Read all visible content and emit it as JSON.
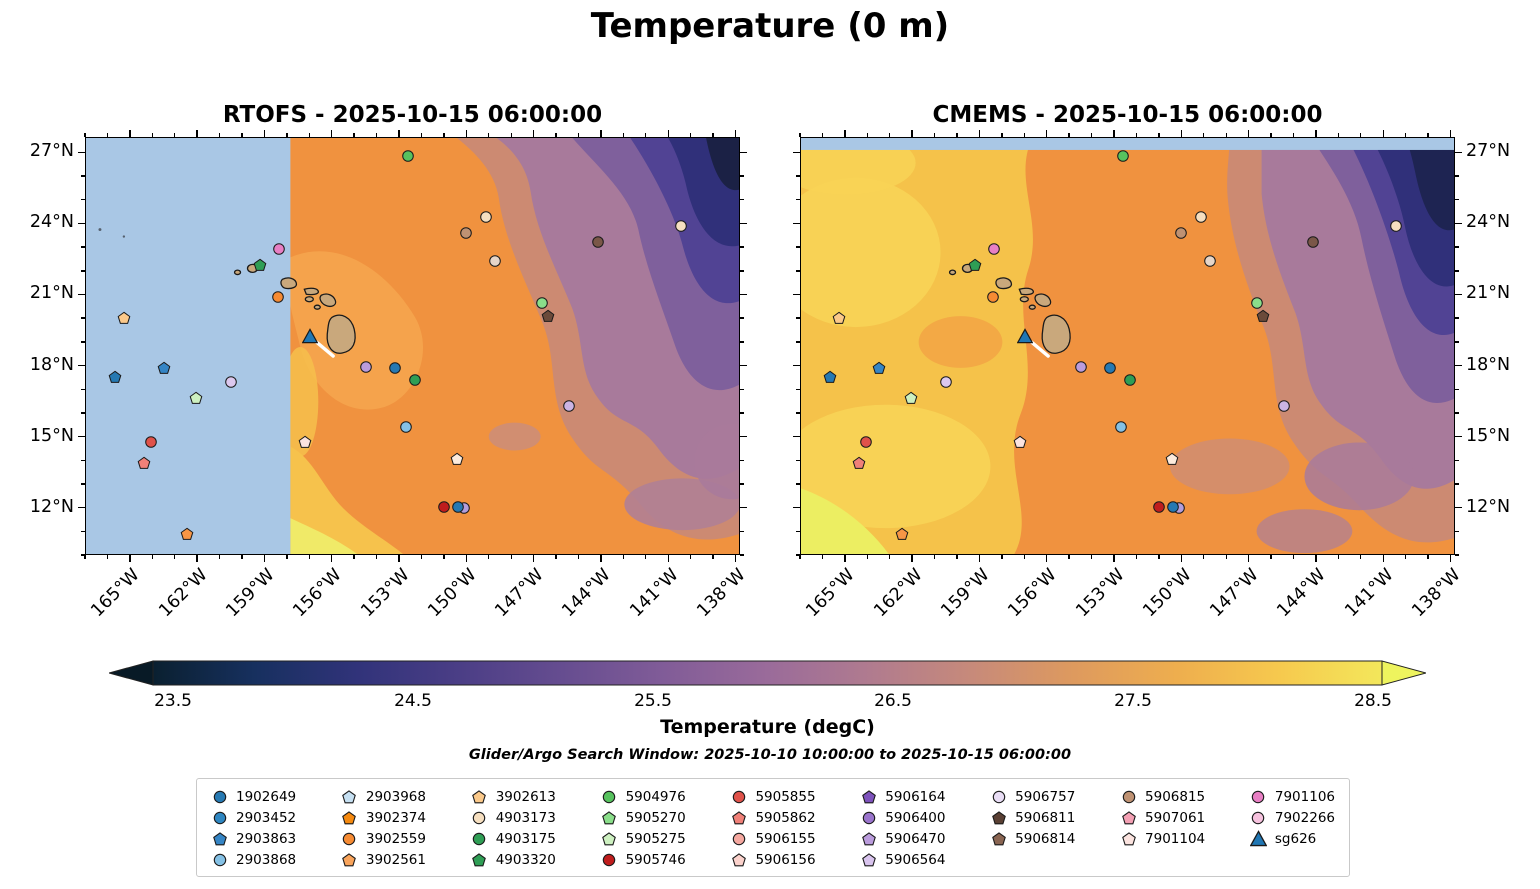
{
  "title": "Temperature (0 m)",
  "panels": [
    {
      "name": "RTOFS",
      "title": "RTOFS - 2025-10-15 06:00:00"
    },
    {
      "name": "CMEMS",
      "title": "CMEMS - 2025-10-15 06:00:00"
    }
  ],
  "axes": {
    "extent": {
      "lon_min": -167.0,
      "lon_max": -137.8,
      "lat_min": 10.0,
      "lat_max": 27.65
    },
    "lon_ticks": [
      {
        "label": "165°W",
        "lon": -165
      },
      {
        "label": "162°W",
        "lon": -162
      },
      {
        "label": "159°W",
        "lon": -159
      },
      {
        "label": "156°W",
        "lon": -156
      },
      {
        "label": "153°W",
        "lon": -153
      },
      {
        "label": "150°W",
        "lon": -150
      },
      {
        "label": "147°W",
        "lon": -147
      },
      {
        "label": "144°W",
        "lon": -144
      },
      {
        "label": "141°W",
        "lon": -141
      },
      {
        "label": "138°W",
        "lon": -138
      }
    ],
    "lat_ticks": [
      {
        "label": "27°N",
        "lat": 27
      },
      {
        "label": "24°N",
        "lat": 24
      },
      {
        "label": "21°N",
        "lat": 21
      },
      {
        "label": "18°N",
        "lat": 18
      },
      {
        "label": "15°N",
        "lat": 15
      },
      {
        "label": "12°N",
        "lat": 12
      }
    ]
  },
  "colorbar": {
    "label": "Temperature (degC)",
    "ticks": [
      "23.5",
      "24.5",
      "25.5",
      "26.5",
      "27.5",
      "28.5"
    ],
    "under_color": "#081a26",
    "over_color": "#eef45e",
    "gradient": [
      "#0a2030",
      "#17305f",
      "#31337a",
      "#4b3e86",
      "#664d90",
      "#815c98",
      "#9a6b9a",
      "#b07b8f",
      "#c78a7a",
      "#de9a5e",
      "#eeae4e",
      "#f6c94e",
      "#f3e75b"
    ]
  },
  "search_window": "Glider/Argo Search Window: 2025-10-10 10:00:00 to 2025-10-15 06:00:00",
  "colors": {
    "no_data": "#a9c7e5",
    "land": "#c9a87c",
    "warm_base": "#f0923f",
    "warm_yellow": "#f5c24a",
    "cool_mauve": "#a87a9b",
    "cool_purple": "#7f609c",
    "coldest_navy": "#1e2452",
    "glider_track": "#ffffff"
  },
  "legend": {
    "columns": [
      [
        {
          "id": "1902649",
          "shape": "circle",
          "color": "#2679b2"
        },
        {
          "id": "2903452",
          "shape": "circle",
          "color": "#2e86c1"
        },
        {
          "id": "2903863",
          "shape": "pentagon",
          "color": "#3585c5"
        },
        {
          "id": "2903868",
          "shape": "circle",
          "color": "#85c1e5"
        }
      ],
      [
        {
          "id": "2903968",
          "shape": "pentagon",
          "color": "#c6e0f2"
        },
        {
          "id": "3902374",
          "shape": "pentagon",
          "color": "#f5890f"
        },
        {
          "id": "3902559",
          "shape": "circle",
          "color": "#f68b33"
        },
        {
          "id": "3902561",
          "shape": "pentagon",
          "color": "#f9a45b"
        }
      ],
      [
        {
          "id": "3902613",
          "shape": "pentagon",
          "color": "#fbc98a"
        },
        {
          "id": "4903173",
          "shape": "circle",
          "color": "#f6dfc0"
        },
        {
          "id": "4903175",
          "shape": "circle",
          "color": "#2f9e55"
        },
        {
          "id": "4903320",
          "shape": "pentagon",
          "color": "#2f9e55"
        }
      ],
      [
        {
          "id": "5904976",
          "shape": "circle",
          "color": "#57c25e"
        },
        {
          "id": "5905270",
          "shape": "pentagon",
          "color": "#8ade8a"
        },
        {
          "id": "5905275",
          "shape": "pentagon",
          "color": "#cdf0c0"
        },
        {
          "id": "5905746",
          "shape": "circle",
          "color": "#c01d1d"
        }
      ],
      [
        {
          "id": "5905855",
          "shape": "circle",
          "color": "#e0524a"
        },
        {
          "id": "5905862",
          "shape": "pentagon",
          "color": "#f08078"
        },
        {
          "id": "5906155",
          "shape": "circle",
          "color": "#f5a8a0"
        },
        {
          "id": "5906156",
          "shape": "pentagon",
          "color": "#fbd2cc"
        }
      ],
      [
        {
          "id": "5906164",
          "shape": "pentagon",
          "color": "#7e52bc"
        },
        {
          "id": "5906400",
          "shape": "circle",
          "color": "#9a74cc"
        },
        {
          "id": "5906470",
          "shape": "pentagon",
          "color": "#bb9cdd"
        },
        {
          "id": "5906564",
          "shape": "pentagon",
          "color": "#d9c4ee"
        }
      ],
      [
        {
          "id": "5906757",
          "shape": "circle",
          "color": "#e9ddf5"
        },
        {
          "id": "5906811",
          "shape": "pentagon",
          "color": "#5a4034"
        },
        {
          "id": "5906814",
          "shape": "pentagon",
          "color": "#8a6552"
        }
      ],
      [
        {
          "id": "5906815",
          "shape": "circle",
          "color": "#bf9273"
        },
        {
          "id": "5907061",
          "shape": "pentagon",
          "color": "#f4a0b4"
        },
        {
          "id": "7901104",
          "shape": "pentagon",
          "color": "#fbe3df"
        }
      ],
      [
        {
          "id": "7901106",
          "shape": "circle",
          "color": "#e87fc4"
        },
        {
          "id": "7902266",
          "shape": "circle",
          "color": "#f6c2de"
        },
        {
          "id": "sg626",
          "shape": "triangle",
          "color": "#2077b4"
        }
      ]
    ]
  },
  "markers": [
    {
      "lon": -152.6,
      "lat": 26.9,
      "shape": "circle",
      "color": "#57c25e"
    },
    {
      "lon": -149.1,
      "lat": 24.3,
      "shape": "circle",
      "color": "#f6dfc0"
    },
    {
      "lon": -150.0,
      "lat": 23.6,
      "shape": "circle",
      "color": "#bf9273"
    },
    {
      "lon": -144.1,
      "lat": 23.25,
      "shape": "circle",
      "color": "#7a5748"
    },
    {
      "lon": -140.4,
      "lat": 23.9,
      "shape": "circle",
      "color": "#f6dfc0"
    },
    {
      "lon": -148.7,
      "lat": 22.45,
      "shape": "circle",
      "color": "#e6d5c8"
    },
    {
      "lon": -158.35,
      "lat": 22.95,
      "shape": "circle",
      "color": "#e87fc4"
    },
    {
      "lon": -159.2,
      "lat": 22.25,
      "shape": "pentagon",
      "color": "#2f9e55"
    },
    {
      "lon": -158.4,
      "lat": 20.9,
      "shape": "circle",
      "color": "#f68b33"
    },
    {
      "lon": -146.6,
      "lat": 20.65,
      "shape": "circle",
      "color": "#8ade8a"
    },
    {
      "lon": -146.35,
      "lat": 20.1,
      "shape": "pentagon",
      "color": "#6b4a3a"
    },
    {
      "lon": -165.3,
      "lat": 20.0,
      "shape": "pentagon",
      "color": "#fbc98a"
    },
    {
      "lon": -154.5,
      "lat": 17.95,
      "shape": "circle",
      "color": "#bb9cdd"
    },
    {
      "lon": -153.2,
      "lat": 17.9,
      "shape": "circle",
      "color": "#2679b2"
    },
    {
      "lon": -163.5,
      "lat": 17.9,
      "shape": "pentagon",
      "color": "#3585c5"
    },
    {
      "lon": -165.7,
      "lat": 17.5,
      "shape": "pentagon",
      "color": "#2679b2"
    },
    {
      "lon": -152.3,
      "lat": 17.4,
      "shape": "circle",
      "color": "#2f9e55"
    },
    {
      "lon": -160.5,
      "lat": 17.3,
      "shape": "circle",
      "color": "#dcc8ee"
    },
    {
      "lon": -162.1,
      "lat": 16.6,
      "shape": "pentagon",
      "color": "#cdf0c0"
    },
    {
      "lon": -145.4,
      "lat": 16.3,
      "shape": "circle",
      "color": "#cbb4e4"
    },
    {
      "lon": -152.7,
      "lat": 15.4,
      "shape": "circle",
      "color": "#85c1e5"
    },
    {
      "lon": -164.1,
      "lat": 14.75,
      "shape": "circle",
      "color": "#e0524a"
    },
    {
      "lon": -157.2,
      "lat": 14.75,
      "shape": "pentagon",
      "color": "#fbe3df"
    },
    {
      "lon": -164.4,
      "lat": 13.85,
      "shape": "pentagon",
      "color": "#f08078"
    },
    {
      "lon": -150.4,
      "lat": 14.05,
      "shape": "pentagon",
      "color": "#fcebdd"
    },
    {
      "lon": -151.0,
      "lat": 12.0,
      "shape": "circle",
      "color": "#c01d1d"
    },
    {
      "lon": -150.1,
      "lat": 11.95,
      "shape": "circle",
      "color": "#b39ddb"
    },
    {
      "lon": -150.35,
      "lat": 12.0,
      "shape": "circle",
      "color": "#2679b2"
    },
    {
      "lon": -162.5,
      "lat": 10.85,
      "shape": "pentagon",
      "color": "#f79646"
    }
  ],
  "glider": {
    "id": "sg626",
    "lon": -156.97,
    "lat": 19.26,
    "color": "#2077b4",
    "track": [
      [
        -156.68,
        18.98
      ],
      [
        -155.95,
        18.4
      ]
    ]
  },
  "chart_data": [
    {
      "type": "heatmap",
      "title": "RTOFS - 2025-10-15 06:00:00",
      "xlabel": "Longitude",
      "ylabel": "Latitude",
      "xlim": [
        -167.0,
        -137.8
      ],
      "ylim": [
        10.0,
        27.65
      ],
      "x_tick_labels": [
        "165°W",
        "162°W",
        "159°W",
        "156°W",
        "153°W",
        "150°W",
        "147°W",
        "144°W",
        "141°W",
        "138°W"
      ],
      "y_tick_labels": [
        "12°N",
        "15°N",
        "18°N",
        "21°N",
        "24°N",
        "27°N"
      ],
      "value_label": "Temperature (degC)",
      "value_ticks": [
        23.5,
        24.5,
        25.5,
        26.5,
        27.5,
        28.5
      ],
      "grid": false,
      "legend_position": "bottom",
      "notes": "Filled-contour sea-surface temperature around Hawaii. Light-blue no-data region west of about 158.5W. Warm 27-28C orange south/west of the islands with a 28+C yellow patch near the southwest data edge; cooling northeastward through mauve/purple 24.5-25.5C to dark navy <23.5C in the far northeast corner. Argo float and glider sg626 positions overlaid."
    },
    {
      "type": "heatmap",
      "title": "CMEMS - 2025-10-15 06:00:00",
      "xlabel": "Longitude",
      "ylabel": "Latitude",
      "xlim": [
        -167.0,
        -137.8
      ],
      "ylim": [
        10.0,
        27.65
      ],
      "x_tick_labels": [
        "165°W",
        "162°W",
        "159°W",
        "156°W",
        "153°W",
        "150°W",
        "147°W",
        "144°W",
        "141°W",
        "138°W"
      ],
      "y_tick_labels": [
        "12°N",
        "15°N",
        "18°N",
        "21°N",
        "24°N",
        "27°N"
      ],
      "value_label": "Temperature (degC)",
      "value_ticks": [
        23.5,
        24.5,
        25.5,
        26.5,
        27.5,
        28.5
      ],
      "grid": false,
      "legend_position": "bottom",
      "notes": "Full-coverage filled-contour SST: warmest 28-28.5C yellow in the west, 27C orange mid-basin, purple 24.5-25.5C to the northeast, darkest navy <23.5C in the northeast corner; thin light-blue masked strip along the 27N top edge. Same float/glider markers overlaid."
    },
    {
      "type": "scatter",
      "title": "Argo float / glider surface positions",
      "points_ref": "markers",
      "notes": "Identical marker positions are drawn on both panels; see top-level markers array and glider object for lon/lat values."
    }
  ]
}
